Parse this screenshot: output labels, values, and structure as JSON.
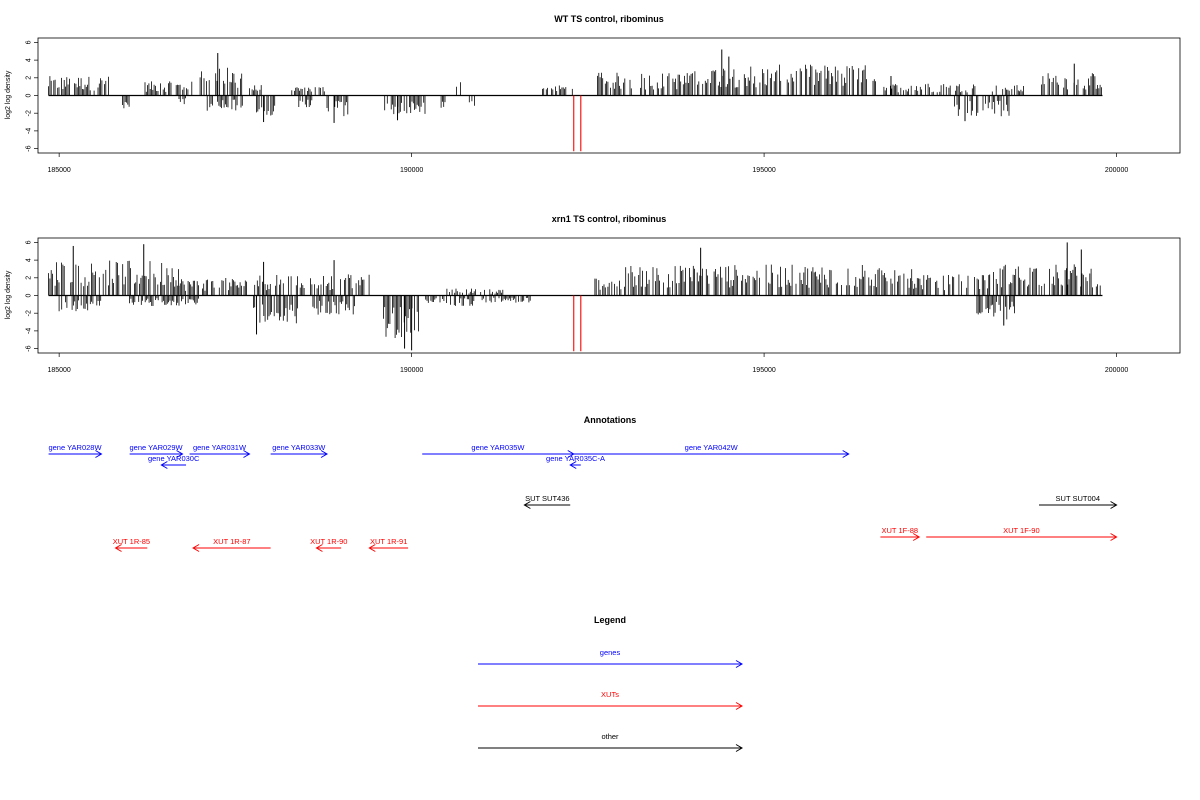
{
  "chart_data": [
    {
      "type": "bar",
      "title": "WT TS control, ribominus",
      "ylabel": "log2 log density",
      "xlabel": "",
      "xlim": [
        184700,
        200900
      ],
      "ylim": [
        -6.5,
        6.5
      ],
      "x_ticks": [
        185000,
        190000,
        195000,
        200000
      ],
      "y_ticks": [
        6,
        4,
        2,
        0,
        -2,
        -4,
        -6
      ],
      "grid": false,
      "baseline": {
        "x": [
          184850,
          199800
        ],
        "y": 0
      },
      "highlight": {
        "color": "#ff0000",
        "x": [
          192300,
          192400
        ],
        "y": -6.3
      },
      "density": {
        "color": "#000000",
        "positive_segments": [
          [
            184850,
            185700,
            2.2
          ],
          [
            186200,
            186900,
            1.6
          ],
          [
            187000,
            187600,
            3.2
          ],
          [
            187700,
            187900,
            1.2
          ],
          [
            188300,
            188800,
            1.1
          ],
          [
            190600,
            190700,
            1.6
          ],
          [
            191800,
            192300,
            1.2
          ],
          [
            192600,
            194000,
            2.6
          ],
          [
            194000,
            196600,
            3.5
          ],
          [
            196700,
            198000,
            1.4
          ],
          [
            198200,
            198700,
            1.2
          ],
          [
            198900,
            199800,
            2.6
          ]
        ],
        "negative_segments": [
          [
            185900,
            186000,
            -1.5
          ],
          [
            186700,
            186800,
            -1.0
          ],
          [
            187100,
            187600,
            -1.8
          ],
          [
            187800,
            188100,
            -2.6
          ],
          [
            188400,
            188600,
            -1.4
          ],
          [
            188800,
            189100,
            -2.4
          ],
          [
            189600,
            190200,
            -2.2
          ],
          [
            190400,
            190500,
            -1.5
          ],
          [
            190800,
            190900,
            -1.8
          ],
          [
            197700,
            198500,
            -2.4
          ]
        ],
        "peaks": [
          [
            187250,
            4.8
          ],
          [
            194400,
            5.2
          ],
          [
            194500,
            4.4
          ],
          [
            199400,
            3.6
          ],
          [
            196800,
            2.2
          ]
        ],
        "troughs": [
          [
            187900,
            -3.0
          ],
          [
            188900,
            -3.1
          ],
          [
            189800,
            -2.8
          ],
          [
            197850,
            -2.9
          ]
        ]
      }
    },
    {
      "type": "bar",
      "title": "xrn1 TS control, ribominus",
      "ylabel": "log2 log density",
      "xlabel": "",
      "xlim": [
        184700,
        200900
      ],
      "ylim": [
        -6.5,
        6.5
      ],
      "x_ticks": [
        185000,
        190000,
        195000,
        200000
      ],
      "y_ticks": [
        6,
        4,
        2,
        0,
        -2,
        -4,
        -6
      ],
      "grid": false,
      "baseline": {
        "x": [
          184850,
          199800
        ],
        "y": 0
      },
      "highlight": {
        "color": "#ff0000",
        "x": [
          192300,
          192400
        ],
        "y": -6.3
      },
      "density": {
        "color": "#000000",
        "positive_segments": [
          [
            184850,
            186700,
            4.0
          ],
          [
            186700,
            187700,
            2.0
          ],
          [
            187700,
            189400,
            2.4
          ],
          [
            190500,
            191300,
            0.8
          ],
          [
            192600,
            193000,
            2.0
          ],
          [
            193000,
            197100,
            3.5
          ],
          [
            197100,
            198200,
            2.4
          ],
          [
            198200,
            199800,
            3.6
          ]
        ],
        "negative_segments": [
          [
            185000,
            185600,
            -1.8
          ],
          [
            186000,
            187000,
            -1.2
          ],
          [
            187700,
            188400,
            -3.2
          ],
          [
            188600,
            189200,
            -2.2
          ],
          [
            189600,
            190100,
            -5.0
          ],
          [
            190200,
            190900,
            -1.2
          ],
          [
            191000,
            191700,
            -0.8
          ],
          [
            198000,
            198600,
            -2.8
          ]
        ],
        "peaks": [
          [
            185200,
            5.6
          ],
          [
            186200,
            5.8
          ],
          [
            187900,
            3.8
          ],
          [
            188900,
            4.0
          ],
          [
            194100,
            5.4
          ],
          [
            199300,
            6.0
          ],
          [
            199500,
            5.2
          ]
        ],
        "troughs": [
          [
            187800,
            -4.4
          ],
          [
            189900,
            -6.0
          ],
          [
            190000,
            -6.2
          ],
          [
            198400,
            -3.4
          ]
        ]
      }
    }
  ],
  "annotations": {
    "title": "Annotations",
    "xlim": [
      184700,
      200900
    ],
    "colors": {
      "gene": "#0000ff",
      "xut": "#ff0000",
      "other": "#000000"
    },
    "features": [
      {
        "label": "gene YAR028W",
        "start": 184850,
        "end": 185600,
        "dir": "right",
        "kind": "gene",
        "row": 0
      },
      {
        "label": "gene YAR029W",
        "start": 186000,
        "end": 186750,
        "dir": "right",
        "kind": "gene",
        "row": 0
      },
      {
        "label": "gene YAR030C",
        "start": 186450,
        "end": 186800,
        "dir": "left",
        "kind": "gene",
        "row": 1
      },
      {
        "label": "gene YAR031W",
        "start": 186850,
        "end": 187700,
        "dir": "right",
        "kind": "gene",
        "row": 0
      },
      {
        "label": "gene YAR033W",
        "start": 188000,
        "end": 188800,
        "dir": "right",
        "kind": "gene",
        "row": 0
      },
      {
        "label": "gene YAR035W",
        "start": 190150,
        "end": 192300,
        "dir": "right",
        "kind": "gene",
        "row": 0
      },
      {
        "label": "gene YAR035C-A",
        "start": 192250,
        "end": 192400,
        "dir": "left",
        "kind": "gene",
        "row": 1
      },
      {
        "label": "gene YAR042W",
        "start": 192300,
        "end": 196200,
        "dir": "right",
        "kind": "gene",
        "row": 0
      },
      {
        "label": "SUT SUT436",
        "start": 191600,
        "end": 192250,
        "dir": "left",
        "kind": "other",
        "row": 3
      },
      {
        "label": "SUT SUT004",
        "start": 198900,
        "end": 200000,
        "dir": "right",
        "kind": "other",
        "row": 3
      },
      {
        "label": "XUT 1R-85",
        "start": 185800,
        "end": 186250,
        "dir": "left",
        "kind": "xut",
        "row": 5
      },
      {
        "label": "XUT 1R-87",
        "start": 186900,
        "end": 188000,
        "dir": "left",
        "kind": "xut",
        "row": 5
      },
      {
        "label": "XUT 1R-90",
        "start": 188650,
        "end": 189000,
        "dir": "left",
        "kind": "xut",
        "row": 5
      },
      {
        "label": "XUT 1R-91",
        "start": 189400,
        "end": 189950,
        "dir": "left",
        "kind": "xut",
        "row": 5
      },
      {
        "label": "XUT 1F-88",
        "start": 196650,
        "end": 197200,
        "dir": "right",
        "kind": "xut",
        "row": 4
      },
      {
        "label": "XUT 1F-90",
        "start": 197300,
        "end": 200000,
        "dir": "right",
        "kind": "xut",
        "row": 4
      }
    ]
  },
  "legend": {
    "title": "Legend",
    "items": [
      {
        "label": "genes",
        "color": "#0000ff"
      },
      {
        "label": "XUTs",
        "color": "#ff0000"
      },
      {
        "label": "other",
        "color": "#000000"
      }
    ]
  }
}
